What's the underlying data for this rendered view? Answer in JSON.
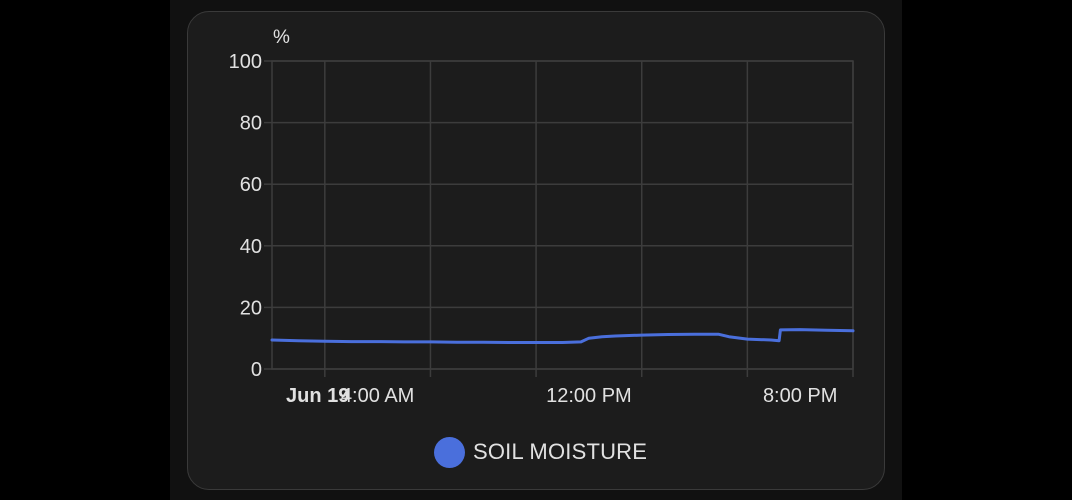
{
  "chart_data": {
    "type": "line",
    "ylabel": "%",
    "ylim": [
      0,
      100
    ],
    "y_ticks": [
      0,
      20,
      40,
      60,
      80,
      100
    ],
    "x_range": [
      "Jun 19, 12:00 AM",
      "Jun 19, 10:00 PM"
    ],
    "x_tick_labels": [
      {
        "label": "Jun 19",
        "hour": 0,
        "bold": true
      },
      {
        "label": "4:00 AM",
        "hour": 4,
        "bold": false
      },
      {
        "label": "12:00 PM",
        "hour": 12,
        "bold": false
      },
      {
        "label": "8:00 PM",
        "hour": 20,
        "bold": false
      }
    ],
    "x_gridlines_hours": [
      2,
      6,
      10,
      14,
      18,
      22
    ],
    "grid": true,
    "legend_position": "bottom-center",
    "series": [
      {
        "name": "SOIL MOISTURE",
        "color": "#4a6fdc",
        "points": [
          {
            "hour": 0.0,
            "value": 9.4
          },
          {
            "hour": 1.0,
            "value": 9.2
          },
          {
            "hour": 2.0,
            "value": 9.0
          },
          {
            "hour": 3.0,
            "value": 8.9
          },
          {
            "hour": 4.0,
            "value": 8.9
          },
          {
            "hour": 5.0,
            "value": 8.8
          },
          {
            "hour": 6.0,
            "value": 8.8
          },
          {
            "hour": 7.0,
            "value": 8.7
          },
          {
            "hour": 8.0,
            "value": 8.7
          },
          {
            "hour": 9.0,
            "value": 8.6
          },
          {
            "hour": 10.0,
            "value": 8.6
          },
          {
            "hour": 11.0,
            "value": 8.6
          },
          {
            "hour": 11.7,
            "value": 8.8
          },
          {
            "hour": 12.0,
            "value": 10.0
          },
          {
            "hour": 12.5,
            "value": 10.5
          },
          {
            "hour": 13.0,
            "value": 10.7
          },
          {
            "hour": 14.0,
            "value": 11.0
          },
          {
            "hour": 15.0,
            "value": 11.2
          },
          {
            "hour": 16.0,
            "value": 11.3
          },
          {
            "hour": 16.9,
            "value": 11.3
          },
          {
            "hour": 17.3,
            "value": 10.5
          },
          {
            "hour": 18.0,
            "value": 9.7
          },
          {
            "hour": 18.9,
            "value": 9.4
          },
          {
            "hour": 19.2,
            "value": 9.2
          },
          {
            "hour": 19.25,
            "value": 12.7
          },
          {
            "hour": 20.0,
            "value": 12.8
          },
          {
            "hour": 21.0,
            "value": 12.6
          },
          {
            "hour": 22.0,
            "value": 12.4
          }
        ]
      }
    ]
  }
}
